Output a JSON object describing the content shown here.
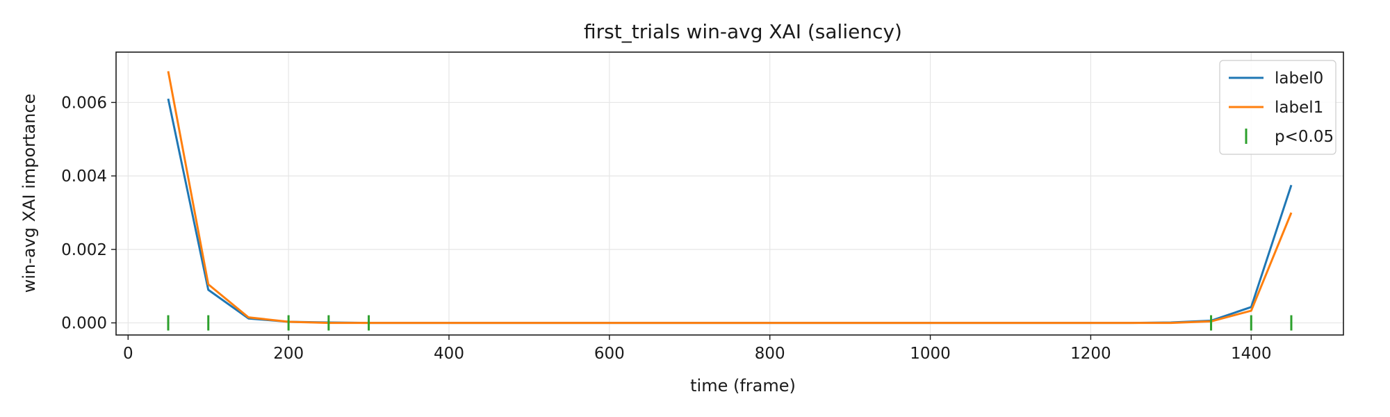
{
  "chart_data": {
    "type": "line",
    "title": "first_trials win-avg XAI (saliency)",
    "xlabel": "time (frame)",
    "ylabel": "win-avg XAI importance",
    "xlim": [
      -15,
      1515
    ],
    "ylim": [
      -0.00033,
      0.00737
    ],
    "xticks": [
      0,
      200,
      400,
      600,
      800,
      1000,
      1200,
      1400
    ],
    "yticks": [
      0.0,
      0.002,
      0.004,
      0.006
    ],
    "ytick_labels": [
      "0.000",
      "0.002",
      "0.004",
      "0.006"
    ],
    "grid": true,
    "legend_position": "top-right",
    "x": [
      50,
      100,
      150,
      200,
      250,
      300,
      350,
      400,
      450,
      500,
      550,
      600,
      650,
      700,
      750,
      800,
      850,
      900,
      950,
      1000,
      1050,
      1100,
      1150,
      1200,
      1250,
      1300,
      1350,
      1400,
      1450
    ],
    "series": [
      {
        "name": "label0",
        "color": "#1f77b4",
        "values": [
          0.0061,
          0.0009,
          0.00012,
          3e-05,
          1e-05,
          0.0,
          0.0,
          0.0,
          0.0,
          0.0,
          0.0,
          0.0,
          0.0,
          0.0,
          0.0,
          0.0,
          0.0,
          0.0,
          0.0,
          0.0,
          0.0,
          0.0,
          0.0,
          0.0,
          0.0,
          1e-05,
          6e-05,
          0.00043,
          0.00375
        ]
      },
      {
        "name": "label1",
        "color": "#ff7f0e",
        "values": [
          0.00685,
          0.00105,
          0.00015,
          3e-05,
          0.0,
          0.0,
          0.0,
          0.0,
          0.0,
          0.0,
          0.0,
          0.0,
          0.0,
          0.0,
          0.0,
          0.0,
          0.0,
          0.0,
          0.0,
          0.0,
          0.0,
          0.0,
          0.0,
          0.0,
          0.0,
          0.0,
          4e-05,
          0.00033,
          0.003
        ]
      }
    ],
    "significance": {
      "name": "p<0.05",
      "color": "#2ca02c",
      "y": 0.0,
      "x": [
        50,
        100,
        200,
        250,
        300,
        1350,
        1400,
        1450
      ]
    }
  }
}
